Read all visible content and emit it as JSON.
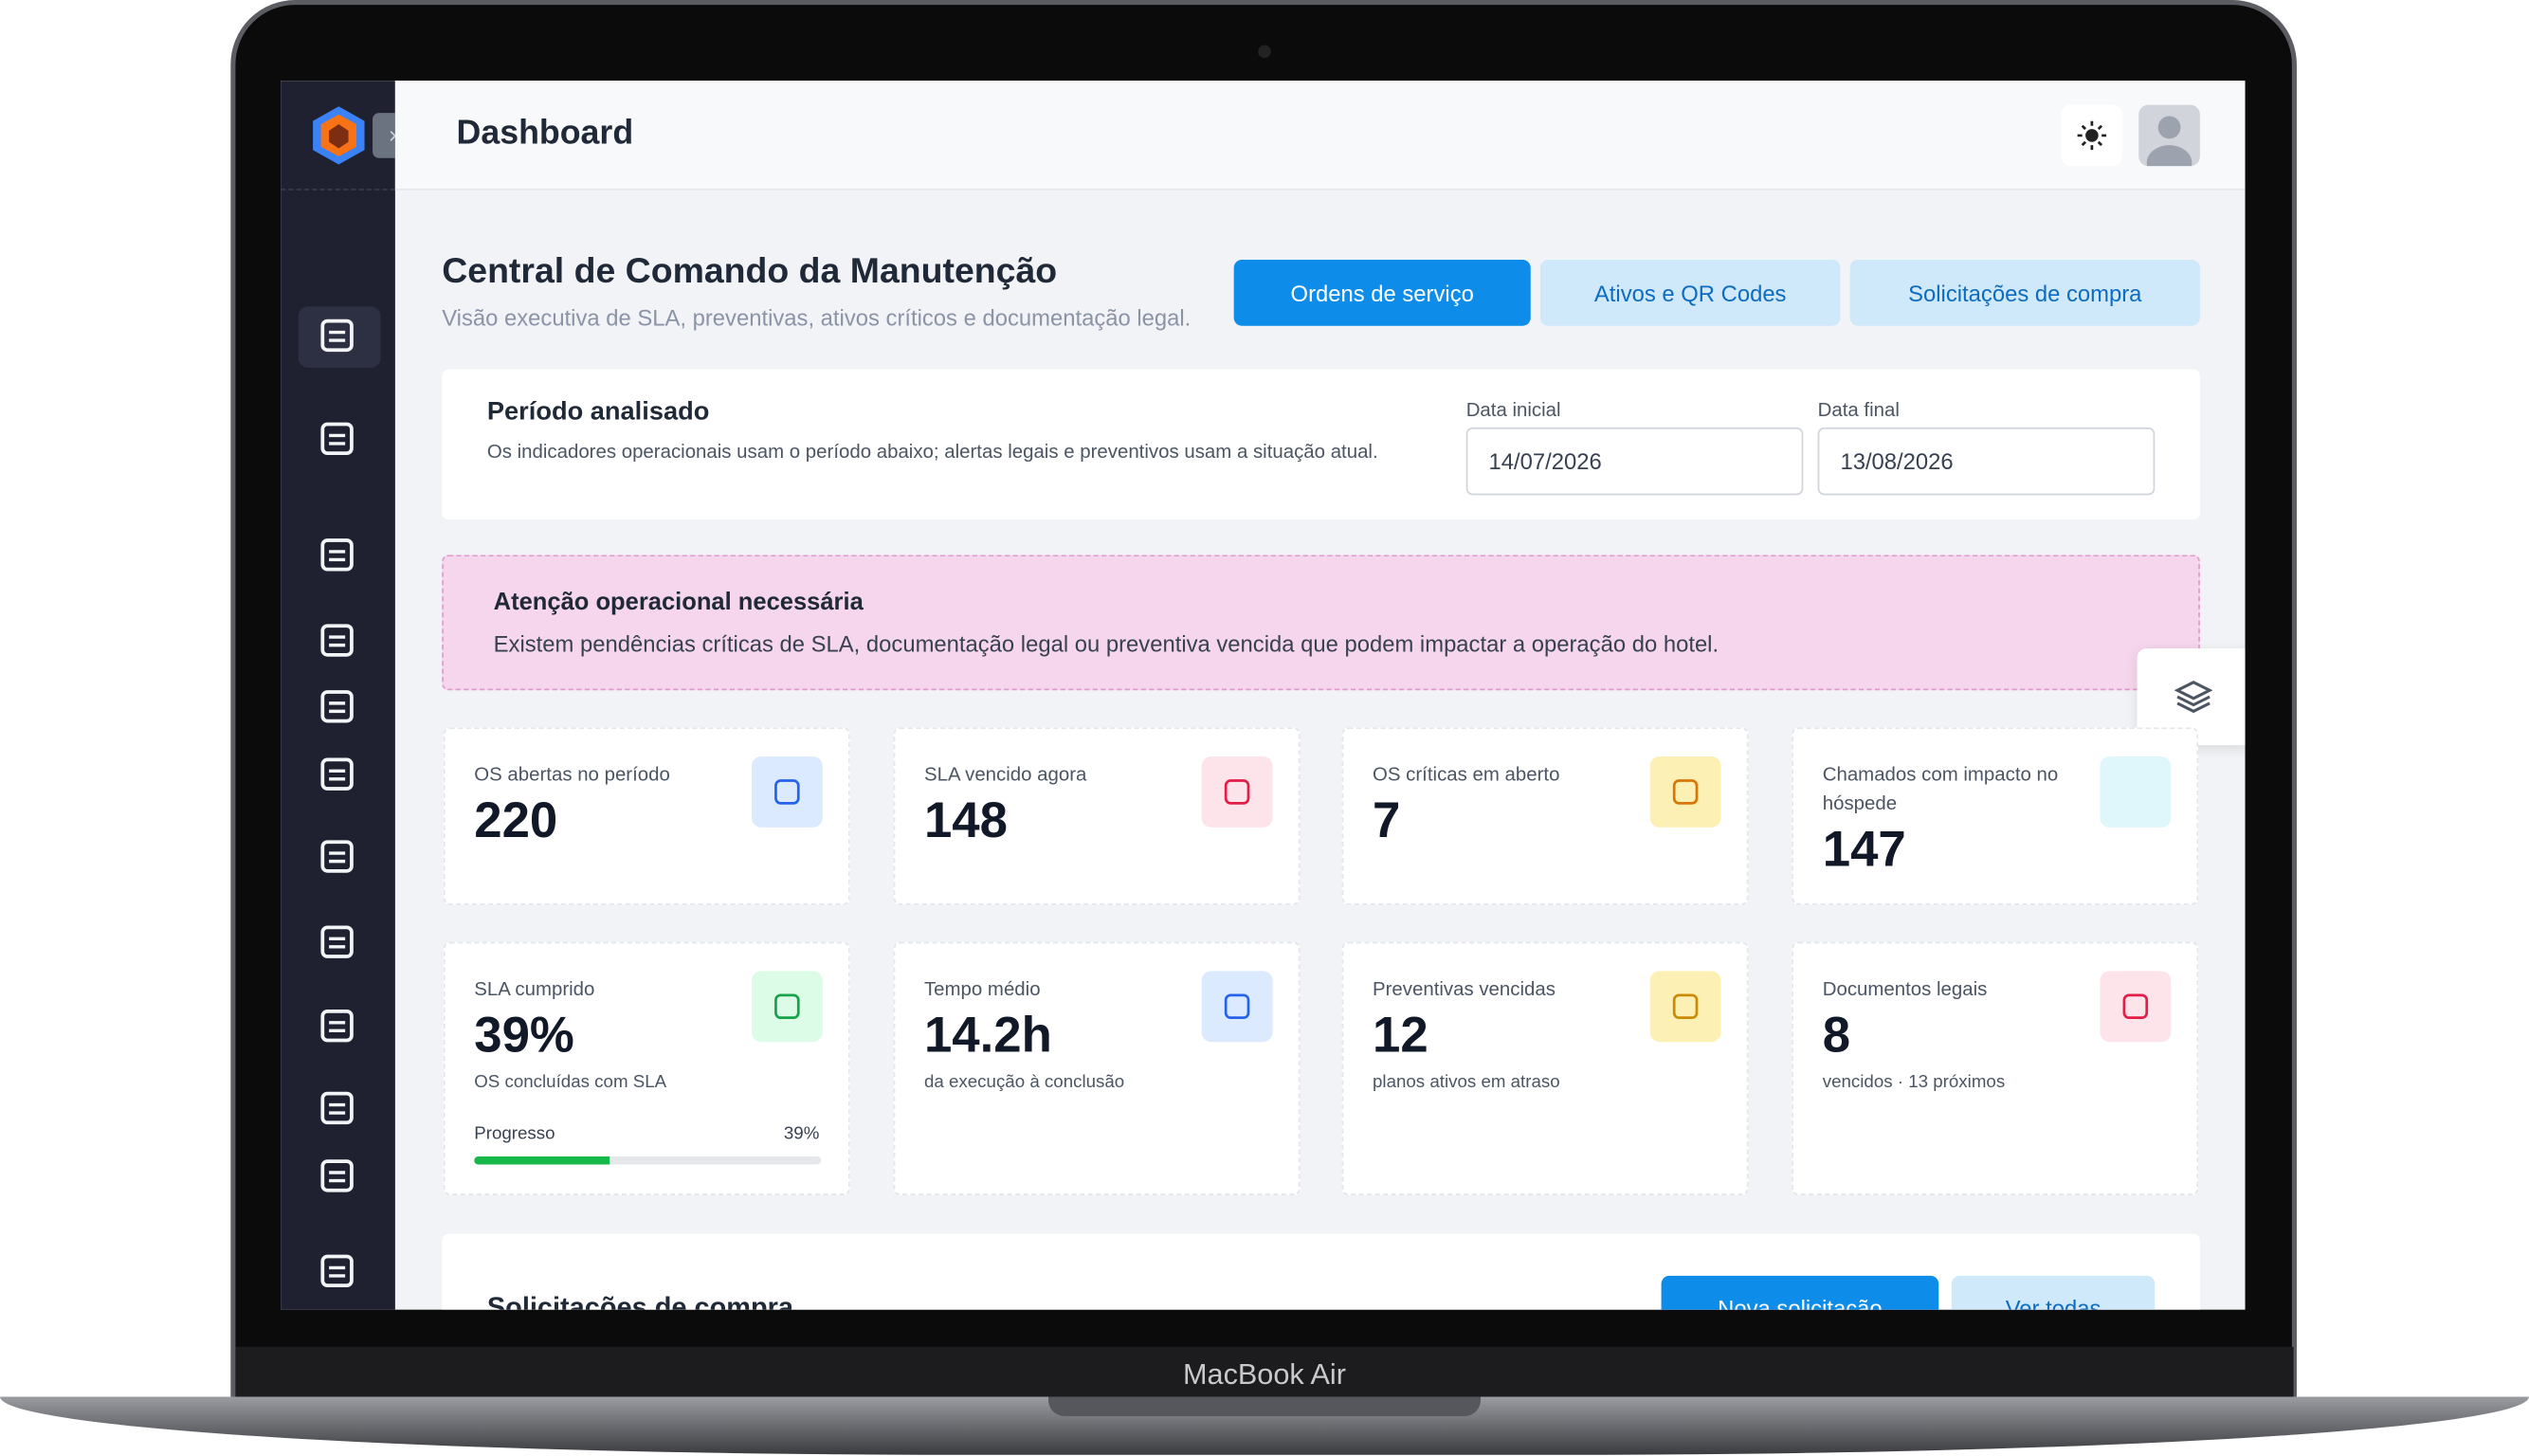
{
  "device_label": "MacBook Air",
  "header": {
    "title": "Dashboard"
  },
  "page": {
    "title": "Central de Comando da Manutenção",
    "subtitle": "Visão executiva de SLA, preventivas, ativos críticos e documentação legal.",
    "buttons": [
      "Ordens de serviço",
      "Ativos e QR Codes",
      "Solicitações de compra"
    ]
  },
  "period": {
    "title": "Período analisado",
    "description": "Os indicadores operacionais usam o período abaixo; alertas legais e preventivos usam a situação atual.",
    "start_label": "Data inicial",
    "start_value": "14/07/2026",
    "end_label": "Data final",
    "end_value": "13/08/2026"
  },
  "alert": {
    "title": "Atenção operacional necessária",
    "text": "Existem pendências críticas de SLA, documentação legal ou preventiva vencida que podem impactar a operação do hotel."
  },
  "cards": [
    {
      "label": "OS abertas no período",
      "value": "220"
    },
    {
      "label": "SLA vencido agora",
      "value": "148"
    },
    {
      "label": "OS críticas em aberto",
      "value": "7"
    },
    {
      "label": "Chamados com impacto no hóspede",
      "value": "147"
    },
    {
      "label": "SLA cumprido",
      "value": "39%",
      "sub": "OS concluídas com SLA"
    },
    {
      "label": "Tempo médio",
      "value": "14.2h",
      "sub": "da execução à conclusão"
    },
    {
      "label": "Preventivas vencidas",
      "value": "12",
      "sub": "planos ativos em atraso"
    },
    {
      "label": "Documentos legais",
      "value": "8",
      "sub": "vencidos · 13 próximos"
    }
  ],
  "progress": {
    "label": "Progresso",
    "value": 39,
    "value_label": "39%"
  },
  "purchases": {
    "title": "Solicitações de compra",
    "buttons": [
      "Nova solicitação",
      "Ver todas"
    ]
  }
}
